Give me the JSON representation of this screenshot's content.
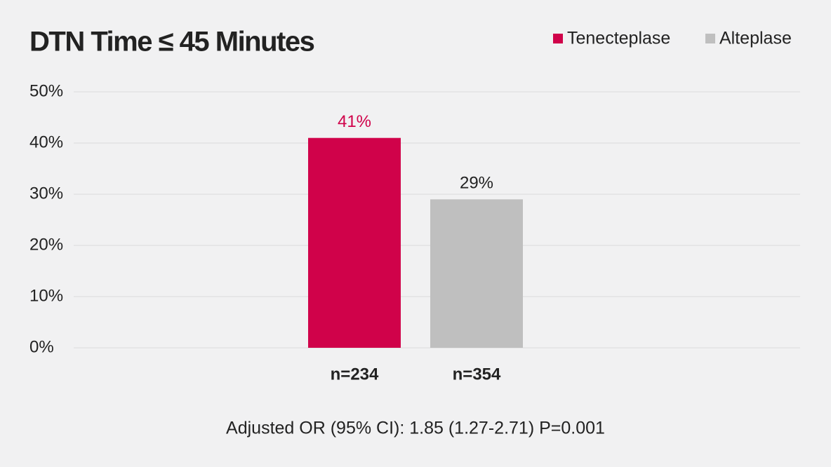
{
  "chart_data": {
    "type": "bar",
    "title": "DTN Time ≤ 45 Minutes",
    "categories": [
      "n=234",
      "n=354"
    ],
    "series": [
      {
        "name": "Tenecteplase",
        "color": "#d0024a",
        "values": [
          41,
          null
        ],
        "value_labels": [
          "41%",
          null
        ]
      },
      {
        "name": "Alteplase",
        "color": "#bfbfbf",
        "values": [
          null,
          29
        ],
        "value_labels": [
          null,
          "29%"
        ]
      }
    ],
    "ylim": [
      0,
      50
    ],
    "yticks": [
      {
        "value": 0,
        "label": "0%"
      },
      {
        "value": 10,
        "label": "10%"
      },
      {
        "value": 20,
        "label": "20%"
      },
      {
        "value": 30,
        "label": "30%"
      },
      {
        "value": 40,
        "label": "40%"
      },
      {
        "value": 50,
        "label": "50%"
      }
    ],
    "grid": true,
    "legend": "top-right",
    "annotation": "Adjusted OR (95% CI): 1.85 (1.27-2.71) P=0.001"
  }
}
